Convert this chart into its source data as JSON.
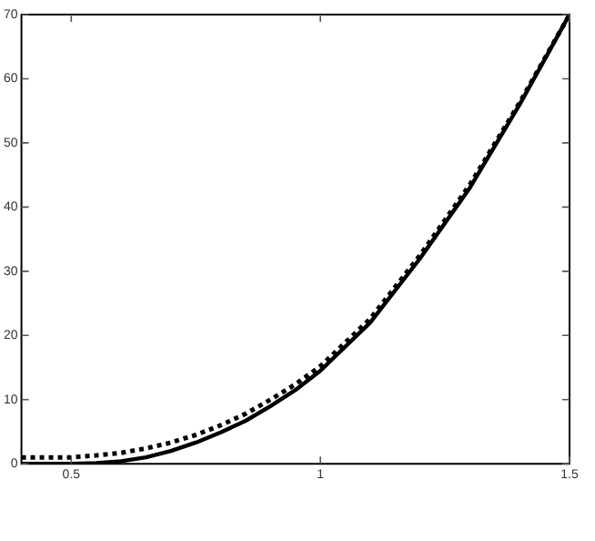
{
  "chart_data": {
    "type": "line",
    "xlim": [
      0.4,
      1.5
    ],
    "xticks": [
      {
        "value": 0.5,
        "label": "0.5"
      },
      1,
      1.5
    ],
    "ylim": [
      0,
      70
    ],
    "yticks": [
      0,
      10,
      20,
      30,
      40,
      50,
      60,
      70
    ],
    "grid": false,
    "legend": false,
    "marker": "none",
    "series": [
      {
        "color": "#000000",
        "line_style": "solid",
        "x": [
          0.4,
          0.5,
          0.55,
          0.6,
          0.65,
          0.7,
          0.75,
          0.8,
          0.85,
          0.9,
          0.95,
          1.0,
          1.1,
          1.2,
          1.3,
          1.4,
          1.5
        ],
        "values": [
          0,
          0,
          0.1,
          0.4,
          1,
          2,
          3.3,
          4.9,
          6.7,
          9,
          11.5,
          14.5,
          22,
          32,
          43,
          56,
          70
        ]
      },
      {
        "color": "#000000",
        "line_style": "dotted",
        "x": [
          0.4,
          0.5,
          0.55,
          0.6,
          0.65,
          0.7,
          0.75,
          0.8,
          0.85,
          0.9,
          0.95,
          1.0,
          1.1,
          1.2,
          1.3,
          1.4,
          1.5
        ],
        "values": [
          1,
          1,
          1.3,
          1.7,
          2.4,
          3.3,
          4.5,
          6,
          7.8,
          10,
          12.4,
          15.2,
          22.6,
          32.5,
          43.5,
          56.3,
          70
        ]
      }
    ]
  }
}
